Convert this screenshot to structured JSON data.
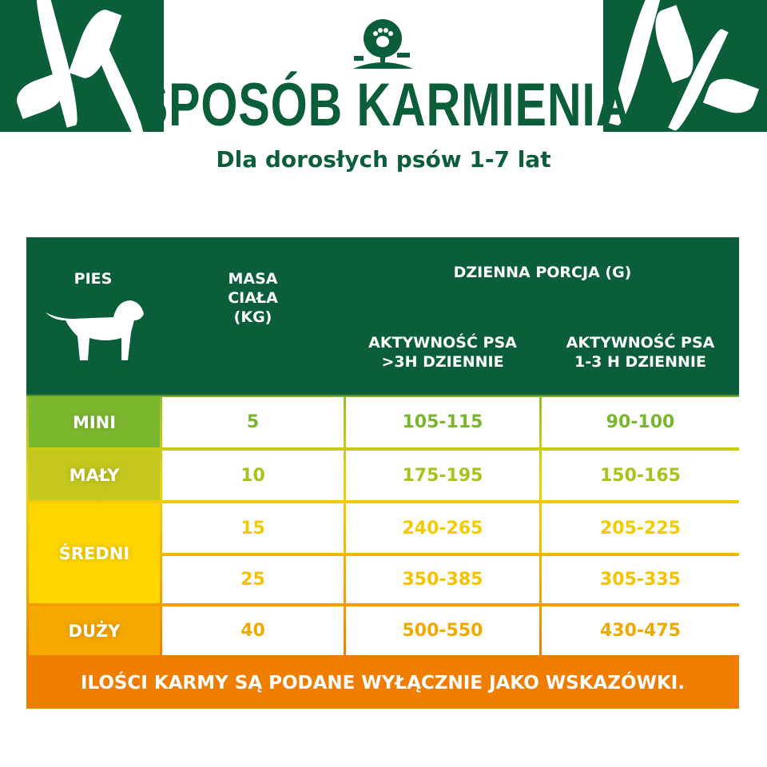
{
  "title": "SPOSÓB KARMIENIA",
  "subtitle": "Dla dorosłych psów 1-7 lat",
  "colors": {
    "brand_green": "#0b5e3a",
    "mini": "#7cb82e",
    "maly": "#c4c81e",
    "sredni": "#fdd600",
    "duzy": "#f6a800",
    "footer": "#ef7d00"
  },
  "header": {
    "dog": "PIES",
    "mass": "MASA CIAŁA (KG)",
    "daily": "DZIENNA PORCJA (G)",
    "active_high": "AKTYWNOŚĆ PSA >3H DZIENNIE",
    "active_low": "AKTYWNOŚĆ PSA 1-3 H DZIENNIE"
  },
  "sizes": [
    "MINI",
    "MAŁY",
    "ŚREDNI",
    "DUŻY"
  ],
  "rows": [
    {
      "mass": "5",
      "high": "105-115",
      "low": "90-100"
    },
    {
      "mass": "10",
      "high": "175-195",
      "low": "150-165"
    },
    {
      "mass": "15",
      "high": "240-265",
      "low": "205-225"
    },
    {
      "mass": "25",
      "high": "350-385",
      "low": "305-335"
    },
    {
      "mass": "40",
      "high": "500-550",
      "low": "430-475"
    }
  ],
  "footer": "ILOŚCI KARMY SĄ PODANE WYŁĄCZNIE JAKO WSKAZÓWKI.",
  "logo_icon": "tree-paw-cat-dog-logo"
}
